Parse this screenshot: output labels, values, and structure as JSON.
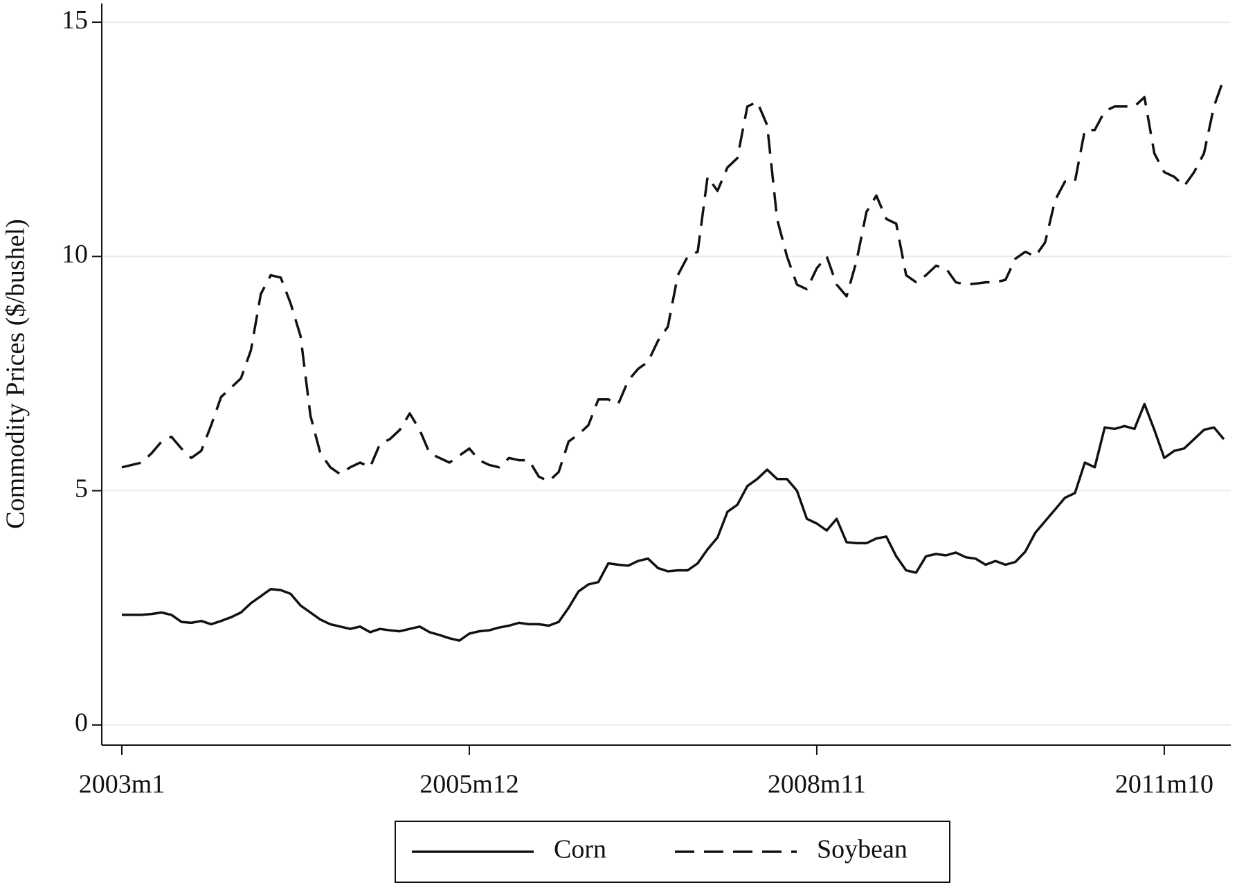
{
  "chart_data": {
    "type": "line",
    "ylabel": "Commodity Prices ($/bushel)",
    "categories": [
      "2003m1",
      null,
      null,
      null,
      null,
      null,
      null,
      null,
      null,
      null,
      null,
      null,
      null,
      null,
      null,
      null,
      null,
      null,
      null,
      null,
      null,
      null,
      null,
      null,
      null,
      null,
      null,
      null,
      null,
      null,
      null,
      null,
      null,
      null,
      null,
      "2005m12",
      null,
      null,
      null,
      null,
      null,
      null,
      null,
      null,
      null,
      null,
      null,
      null,
      null,
      null,
      null,
      null,
      null,
      null,
      null,
      null,
      null,
      null,
      null,
      null,
      null,
      null,
      null,
      null,
      null,
      null,
      null,
      null,
      null,
      null,
      "2008m11",
      null,
      null,
      null,
      null,
      null,
      null,
      null,
      null,
      null,
      null,
      null,
      null,
      null,
      null,
      null,
      null,
      null,
      null,
      null,
      null,
      null,
      null,
      null,
      null,
      null,
      null,
      null,
      null,
      null,
      null,
      null,
      null,
      null,
      null,
      "2011m10",
      null,
      null,
      null,
      null,
      null,
      null
    ],
    "series": [
      {
        "name": "Corn",
        "color": "#111111",
        "dash": "solid",
        "values": [
          2.35,
          2.35,
          2.35,
          2.37,
          2.4,
          2.35,
          2.2,
          2.18,
          2.22,
          2.15,
          2.22,
          2.3,
          2.4,
          2.6,
          2.75,
          2.9,
          2.88,
          2.8,
          2.55,
          2.4,
          2.25,
          2.15,
          2.1,
          2.05,
          2.1,
          1.98,
          2.05,
          2.02,
          2.0,
          2.05,
          2.1,
          1.98,
          1.92,
          1.85,
          1.8,
          1.95,
          2.0,
          2.02,
          2.08,
          2.12,
          2.18,
          2.15,
          2.15,
          2.12,
          2.2,
          2.5,
          2.85,
          3.0,
          3.05,
          3.45,
          3.42,
          3.4,
          3.5,
          3.55,
          3.35,
          3.28,
          3.3,
          3.3,
          3.45,
          3.75,
          4.0,
          4.55,
          4.7,
          5.1,
          5.25,
          5.45,
          5.25,
          5.25,
          5.0,
          4.4,
          4.3,
          4.15,
          4.4,
          3.9,
          3.88,
          3.88,
          3.98,
          4.02,
          3.6,
          3.3,
          3.25,
          3.6,
          3.65,
          3.62,
          3.68,
          3.58,
          3.55,
          3.42,
          3.5,
          3.42,
          3.48,
          3.7,
          4.1,
          4.35,
          4.6,
          4.85,
          4.95,
          5.6,
          5.5,
          6.35,
          6.32,
          6.38,
          6.32,
          6.85,
          6.3,
          5.7,
          5.85,
          5.9,
          6.1,
          6.3,
          6.35,
          6.1
        ]
      },
      {
        "name": "Soybean",
        "color": "#111111",
        "dash": "dashed",
        "values": [
          5.5,
          5.55,
          5.6,
          5.8,
          6.05,
          6.15,
          5.9,
          5.7,
          5.85,
          6.4,
          7.0,
          7.2,
          7.4,
          8.0,
          9.2,
          9.6,
          9.55,
          9.0,
          8.3,
          6.6,
          5.8,
          5.5,
          5.35,
          5.5,
          5.6,
          5.5,
          6.0,
          6.1,
          6.3,
          6.65,
          6.3,
          5.8,
          5.7,
          5.6,
          5.75,
          5.9,
          5.65,
          5.55,
          5.5,
          5.7,
          5.65,
          5.65,
          5.3,
          5.2,
          5.4,
          6.05,
          6.2,
          6.4,
          6.95,
          6.95,
          6.85,
          7.35,
          7.6,
          7.75,
          8.2,
          8.5,
          9.6,
          10.0,
          10.1,
          11.7,
          11.4,
          11.9,
          12.1,
          13.2,
          13.3,
          12.8,
          10.8,
          10.0,
          9.4,
          9.3,
          9.75,
          10.0,
          9.4,
          9.15,
          9.9,
          10.95,
          11.3,
          10.8,
          10.7,
          9.6,
          9.45,
          9.6,
          9.8,
          9.75,
          9.45,
          9.4,
          9.42,
          9.45,
          9.45,
          9.5,
          9.95,
          10.1,
          10.0,
          10.3,
          11.2,
          11.6,
          11.6,
          12.7,
          12.7,
          13.1,
          13.2,
          13.2,
          13.2,
          13.4,
          12.2,
          11.8,
          11.7,
          11.5,
          11.8,
          12.2,
          13.2,
          13.8
        ]
      }
    ],
    "ylim": [
      -0.43,
      15.4
    ],
    "yticks": [
      0,
      5,
      10,
      15
    ],
    "grid": true,
    "legend": "bottom"
  }
}
